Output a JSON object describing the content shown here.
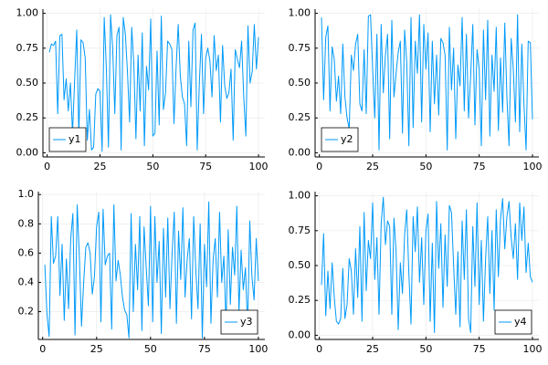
{
  "chart_data": [
    {
      "type": "line",
      "x": [
        1,
        2,
        3,
        4,
        5,
        6,
        7,
        8,
        9,
        10,
        11,
        12,
        13,
        14,
        15,
        16,
        17,
        18,
        19,
        20,
        21,
        22,
        23,
        24,
        25,
        26,
        27,
        28,
        29,
        30,
        31,
        32,
        33,
        34,
        35,
        36,
        37,
        38,
        39,
        40,
        41,
        42,
        43,
        44,
        45,
        46,
        47,
        48,
        49,
        50,
        51,
        52,
        53,
        54,
        55,
        56,
        57,
        58,
        59,
        60,
        61,
        62,
        63,
        64,
        65,
        66,
        67,
        68,
        69,
        70,
        71,
        72,
        73,
        74,
        75,
        76,
        77,
        78,
        79,
        80,
        81,
        82,
        83,
        84,
        85,
        86,
        87,
        88,
        89,
        90,
        91,
        92,
        93,
        94,
        95,
        96,
        97,
        98,
        99,
        100
      ],
      "series": [
        {
          "name": "y1",
          "color": "#009af9",
          "values": [
            0.72,
            0.78,
            0.77,
            0.8,
            0.28,
            0.84,
            0.85,
            0.38,
            0.53,
            0.3,
            0.5,
            0.14,
            0.52,
            0.88,
            0.12,
            0.81,
            0.79,
            0.68,
            0.09,
            0.31,
            0.02,
            0.04,
            0.42,
            0.46,
            0.44,
            0.01,
            0.97,
            0.61,
            0.04,
            0.99,
            0.75,
            0.28,
            0.84,
            0.9,
            0.02,
            0.97,
            0.85,
            0.58,
            0.22,
            0.9,
            0.64,
            0.1,
            0.7,
            0.3,
            0.86,
            0.05,
            0.62,
            0.45,
            0.96,
            0.12,
            0.14,
            0.73,
            0.2,
            0.98,
            0.31,
            0.43,
            0.8,
            0.78,
            0.74,
            0.21,
            0.61,
            0.92,
            0.55,
            0.4,
            0.35,
            0.05,
            0.8,
            0.33,
            0.88,
            0.93,
            0.02,
            0.5,
            0.85,
            0.28,
            0.68,
            0.75,
            0.66,
            0.4,
            0.84,
            0.59,
            0.7,
            0.22,
            0.77,
            0.48,
            0.39,
            0.43,
            0.6,
            0.09,
            0.74,
            0.67,
            0.61,
            0.8,
            0.4,
            0.12,
            0.91,
            0.5,
            0.58,
            0.92,
            0.6,
            0.83
          ]
        }
      ],
      "xlim": [
        -2,
        103
      ],
      "ylim": [
        -0.03,
        1.03
      ],
      "xticks": [
        0,
        25,
        50,
        75,
        100
      ],
      "yticks": [
        {
          "value": 0,
          "label": "0.00"
        },
        {
          "value": 0.25,
          "label": "0.25"
        },
        {
          "value": 0.5,
          "label": "0.50"
        },
        {
          "value": 0.75,
          "label": "0.75"
        },
        {
          "value": 1,
          "label": "1.00"
        }
      ],
      "grid": true,
      "legend": "bottom-left"
    },
    {
      "type": "line",
      "x": [
        1,
        2,
        3,
        4,
        5,
        6,
        7,
        8,
        9,
        10,
        11,
        12,
        13,
        14,
        15,
        16,
        17,
        18,
        19,
        20,
        21,
        22,
        23,
        24,
        25,
        26,
        27,
        28,
        29,
        30,
        31,
        32,
        33,
        34,
        35,
        36,
        37,
        38,
        39,
        40,
        41,
        42,
        43,
        44,
        45,
        46,
        47,
        48,
        49,
        50,
        51,
        52,
        53,
        54,
        55,
        56,
        57,
        58,
        59,
        60,
        61,
        62,
        63,
        64,
        65,
        66,
        67,
        68,
        69,
        70,
        71,
        72,
        73,
        74,
        75,
        76,
        77,
        78,
        79,
        80,
        81,
        82,
        83,
        84,
        85,
        86,
        87,
        88,
        89,
        90,
        91,
        92,
        93,
        94,
        95,
        96,
        97,
        98,
        99,
        100
      ],
      "series": [
        {
          "name": "y2",
          "color": "#009af9",
          "values": [
            0.97,
            0.38,
            0.83,
            0.91,
            0.3,
            0.76,
            0.67,
            0.37,
            0.55,
            0.28,
            0.78,
            0.4,
            0.25,
            0.17,
            0.7,
            0.59,
            0.78,
            0.85,
            0.35,
            0.3,
            0.74,
            0.28,
            0.98,
            0.99,
            0.6,
            0.25,
            0.85,
            0.02,
            0.92,
            0.43,
            0.7,
            0.85,
            0.1,
            0.95,
            0.4,
            0.57,
            0.72,
            0.8,
            0.14,
            0.88,
            0.65,
            0.05,
            0.97,
            0.18,
            0.8,
            0.57,
            0.99,
            0.22,
            0.92,
            0.6,
            0.86,
            0.15,
            0.8,
            0.35,
            0.7,
            0.27,
            0.82,
            0.79,
            0.7,
            0.02,
            0.9,
            0.45,
            0.75,
            0.1,
            0.63,
            0.48,
            0.97,
            0.3,
            0.85,
            0.25,
            0.55,
            0.92,
            0.2,
            0.74,
            0.6,
            0.05,
            0.88,
            0.38,
            0.95,
            0.12,
            0.7,
            0.44,
            0.9,
            0.16,
            0.68,
            0.29,
            0.93,
            0.4,
            0.05,
            0.82,
            0.6,
            0.22,
            0.99,
            0.15,
            0.78,
            0.35,
            0.02,
            0.8,
            0.79,
            0.24
          ]
        }
      ],
      "xlim": [
        -2,
        103
      ],
      "ylim": [
        -0.03,
        1.03
      ],
      "xticks": [
        0,
        25,
        50,
        75,
        100
      ],
      "yticks": [
        {
          "value": 0,
          "label": "0.00"
        },
        {
          "value": 0.25,
          "label": "0.25"
        },
        {
          "value": 0.5,
          "label": "0.50"
        },
        {
          "value": 0.75,
          "label": "0.75"
        },
        {
          "value": 1,
          "label": "1.00"
        }
      ],
      "grid": true,
      "legend": "bottom-left"
    },
    {
      "type": "line",
      "x": [
        1,
        2,
        3,
        4,
        5,
        6,
        7,
        8,
        9,
        10,
        11,
        12,
        13,
        14,
        15,
        16,
        17,
        18,
        19,
        20,
        21,
        22,
        23,
        24,
        25,
        26,
        27,
        28,
        29,
        30,
        31,
        32,
        33,
        34,
        35,
        36,
        37,
        38,
        39,
        40,
        41,
        42,
        43,
        44,
        45,
        46,
        47,
        48,
        49,
        50,
        51,
        52,
        53,
        54,
        55,
        56,
        57,
        58,
        59,
        60,
        61,
        62,
        63,
        64,
        65,
        66,
        67,
        68,
        69,
        70,
        71,
        72,
        73,
        74,
        75,
        76,
        77,
        78,
        79,
        80,
        81,
        82,
        83,
        84,
        85,
        86,
        87,
        88,
        89,
        90,
        91,
        92,
        93,
        94,
        95,
        96,
        97,
        98,
        99,
        100
      ],
      "series": [
        {
          "name": "y3",
          "color": "#009af9",
          "values": [
            0.52,
            0.18,
            0.03,
            0.85,
            0.53,
            0.58,
            0.85,
            0.31,
            0.66,
            0.14,
            0.56,
            0.22,
            0.7,
            0.87,
            0.04,
            0.93,
            0.58,
            0.1,
            0.4,
            0.64,
            0.67,
            0.6,
            0.32,
            0.44,
            0.78,
            0.88,
            0.13,
            0.9,
            0.52,
            0.58,
            0.6,
            0.08,
            0.93,
            0.41,
            0.55,
            0.45,
            0.3,
            0.21,
            0.18,
            0.02,
            0.87,
            0.2,
            0.66,
            0.35,
            0.85,
            0.07,
            0.78,
            0.5,
            0.24,
            0.92,
            0.13,
            0.85,
            0.4,
            0.68,
            0.05,
            0.77,
            0.3,
            0.84,
            0.22,
            0.6,
            0.88,
            0.12,
            0.75,
            0.42,
            0.91,
            0.3,
            0.56,
            0.7,
            0.15,
            0.85,
            0.48,
            0.22,
            0.8,
            0.02,
            0.66,
            0.37,
            0.95,
            0.12,
            0.55,
            0.7,
            0.3,
            0.88,
            0.4,
            0.58,
            0.1,
            0.76,
            0.25,
            0.64,
            0.45,
            0.92,
            0.2,
            0.62,
            0.35,
            0.5,
            0.08,
            0.82,
            0.44,
            0.28,
            0.7,
            0.41
          ]
        }
      ],
      "xlim": [
        -2,
        103
      ],
      "ylim": [
        0.01,
        1.02
      ],
      "xticks": [
        0,
        25,
        50,
        75,
        100
      ],
      "yticks": [
        0.2,
        0.4,
        0.6,
        0.8,
        {
          "value": 1,
          "label": "1.0"
        }
      ],
      "grid": true,
      "legend": "bottom-right"
    },
    {
      "type": "line",
      "x": [
        1,
        2,
        3,
        4,
        5,
        6,
        7,
        8,
        9,
        10,
        11,
        12,
        13,
        14,
        15,
        16,
        17,
        18,
        19,
        20,
        21,
        22,
        23,
        24,
        25,
        26,
        27,
        28,
        29,
        30,
        31,
        32,
        33,
        34,
        35,
        36,
        37,
        38,
        39,
        40,
        41,
        42,
        43,
        44,
        45,
        46,
        47,
        48,
        49,
        50,
        51,
        52,
        53,
        54,
        55,
        56,
        57,
        58,
        59,
        60,
        61,
        62,
        63,
        64,
        65,
        66,
        67,
        68,
        69,
        70,
        71,
        72,
        73,
        74,
        75,
        76,
        77,
        78,
        79,
        80,
        81,
        82,
        83,
        84,
        85,
        86,
        87,
        88,
        89,
        90,
        91,
        92,
        93,
        94,
        95,
        96,
        97,
        98,
        99,
        100
      ],
      "series": [
        {
          "name": "y4",
          "color": "#009af9",
          "values": [
            0.36,
            0.73,
            0.14,
            0.46,
            0.19,
            0.52,
            0.27,
            0.1,
            0.08,
            0.12,
            0.48,
            0.12,
            0.22,
            0.55,
            0.46,
            0.15,
            0.62,
            0.27,
            0.78,
            0.1,
            0.88,
            0.32,
            0.68,
            0.55,
            0.95,
            0.4,
            0.7,
            0.15,
            0.8,
            0.99,
            0.65,
            0.82,
            0.78,
            0.15,
            0.84,
            0.6,
            0.04,
            0.52,
            0.3,
            0.72,
            0.9,
            0.44,
            0.08,
            0.85,
            0.6,
            0.92,
            0.38,
            0.7,
            0.22,
            0.75,
            0.87,
            0.1,
            0.66,
            0.02,
            0.96,
            0.48,
            0.8,
            0.2,
            0.72,
            0.35,
            0.93,
            0.88,
            0.5,
            0.15,
            0.6,
            0.06,
            0.82,
            0.4,
            0.9,
            0.12,
            0.02,
            0.78,
            0.35,
            0.95,
            0.22,
            0.68,
            0.1,
            0.55,
            0.85,
            0.3,
            0.75,
            0.18,
            0.9,
            0.42,
            0.83,
            0.98,
            0.62,
            0.85,
            0.96,
            0.7,
            0.55,
            0.8,
            0.4,
            0.95,
            0.68,
            0.92,
            0.45,
            0.66,
            0.42,
            0.38
          ]
        }
      ],
      "xlim": [
        -2,
        103
      ],
      "ylim": [
        -0.03,
        1.03
      ],
      "xticks": [
        0,
        25,
        50,
        75,
        100
      ],
      "yticks": [
        {
          "value": 0,
          "label": "0.00"
        },
        {
          "value": 0.25,
          "label": "0.25"
        },
        {
          "value": 0.5,
          "label": "0.50"
        },
        {
          "value": 0.75,
          "label": "0.75"
        },
        {
          "value": 1,
          "label": "1.00"
        }
      ],
      "grid": true,
      "legend": "bottom-right"
    }
  ]
}
